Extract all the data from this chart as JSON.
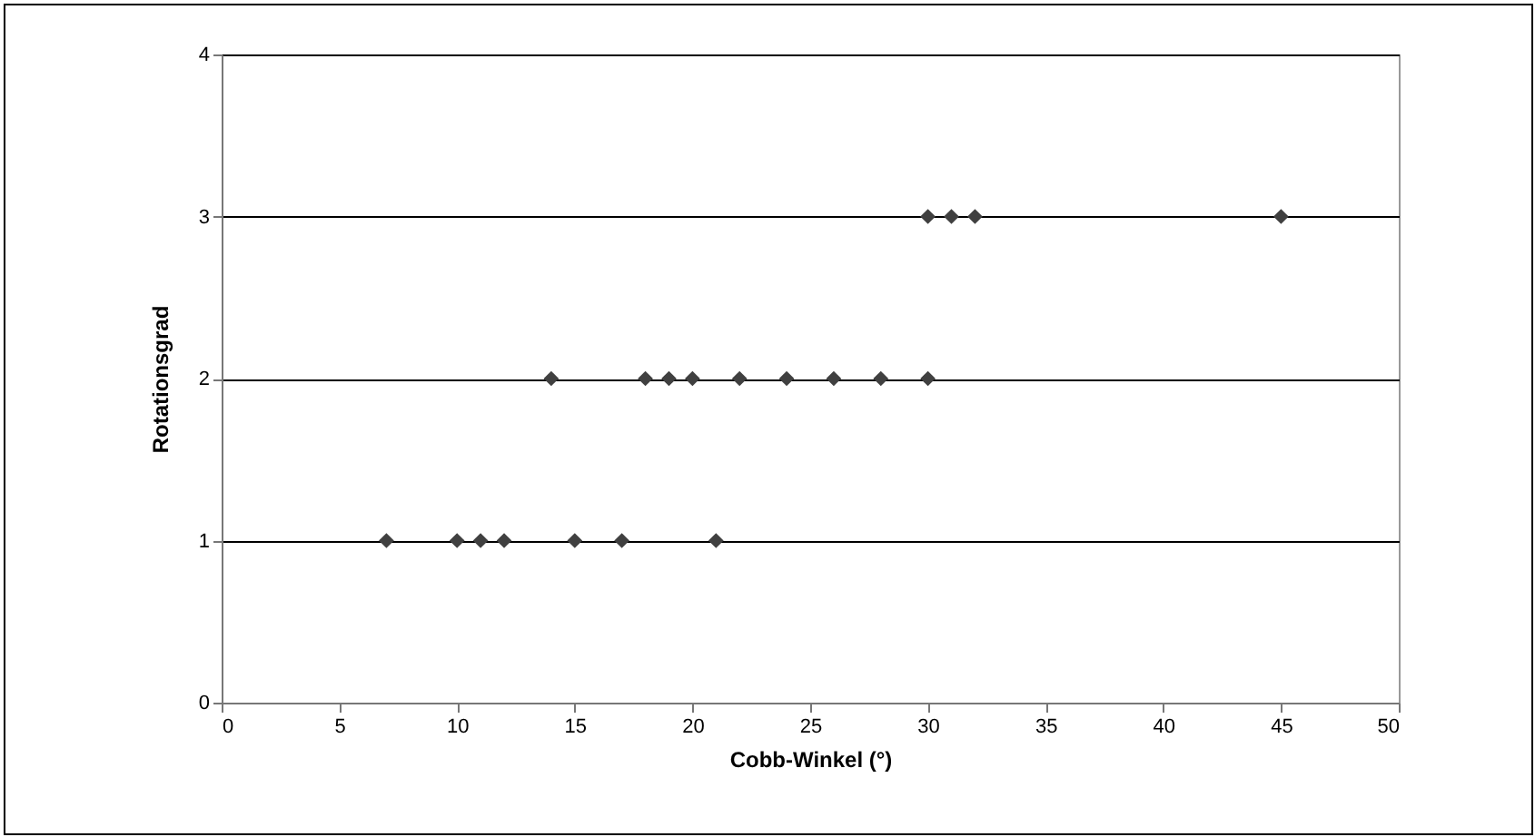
{
  "chart_data": {
    "type": "scatter",
    "xlabel": "Cobb-Winkel (°)",
    "ylabel": "Rotationsgrad",
    "x": [
      7,
      10,
      11,
      12,
      15,
      17,
      21,
      14,
      18,
      19,
      20,
      22,
      24,
      26,
      28,
      30,
      30,
      31,
      32,
      45
    ],
    "values": [
      1,
      1,
      1,
      1,
      1,
      1,
      1,
      2,
      2,
      2,
      2,
      2,
      2,
      2,
      2,
      2,
      3,
      3,
      3,
      3
    ],
    "color": "#404040",
    "marker": "diamond",
    "grid": "y",
    "xlim": [
      0,
      50
    ],
    "xticks": [
      0,
      5,
      10,
      15,
      20,
      25,
      30,
      35,
      40,
      45,
      50
    ],
    "ylim": [
      0,
      4
    ],
    "yticks": [
      0,
      1,
      2,
      3,
      4
    ]
  }
}
